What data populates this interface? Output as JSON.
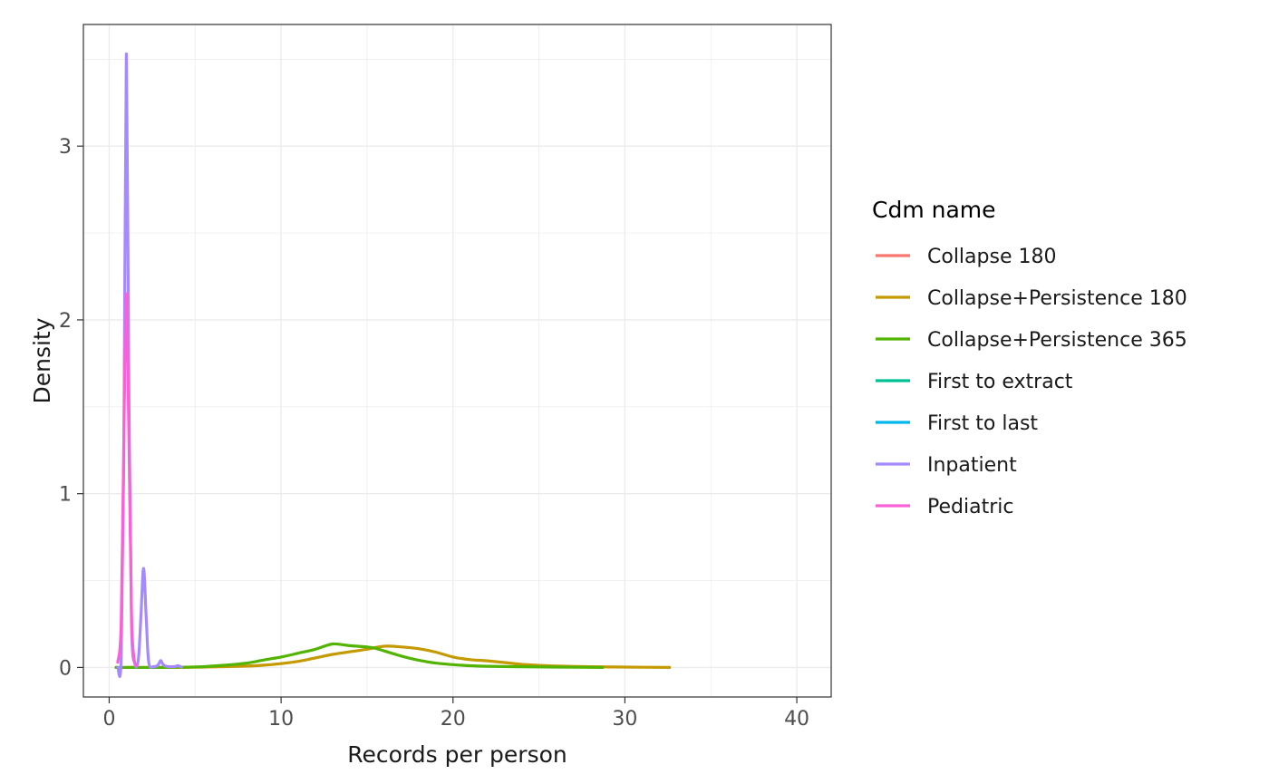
{
  "chart_data": {
    "type": "line",
    "title": "",
    "xlabel": "Records per person",
    "ylabel": "Density",
    "xlim": [
      -1.5,
      42
    ],
    "ylim": [
      -0.17,
      3.7
    ],
    "x_ticks": [
      0,
      10,
      20,
      30,
      40
    ],
    "y_ticks": [
      0,
      1,
      2,
      3
    ],
    "grid": true,
    "legend": {
      "title": "Cdm name",
      "position": "right"
    },
    "series": [
      {
        "name": "Collapse 180",
        "color": "#F8766D",
        "x": [],
        "y": []
      },
      {
        "name": "Collapse+Persistence 180",
        "color": "#C49A00",
        "x": [
          1,
          4,
          6,
          8,
          9,
          10,
          11,
          12,
          13,
          14,
          15,
          16,
          17,
          18,
          19,
          20,
          21,
          22,
          23,
          24,
          25,
          26,
          28,
          30,
          32.6
        ],
        "y": [
          0,
          0,
          0.003,
          0.008,
          0.013,
          0.022,
          0.035,
          0.055,
          0.075,
          0.09,
          0.105,
          0.122,
          0.118,
          0.108,
          0.088,
          0.06,
          0.045,
          0.038,
          0.028,
          0.018,
          0.012,
          0.008,
          0.004,
          0.002,
          0
        ]
      },
      {
        "name": "Collapse+Persistence 365",
        "color": "#53B400",
        "x": [
          0.4,
          3,
          5,
          6,
          7,
          8,
          9,
          10,
          11,
          12,
          13,
          14,
          15,
          15.5,
          16,
          17,
          18,
          19,
          20,
          21,
          22,
          24,
          26,
          28.7
        ],
        "y": [
          0,
          0,
          0.003,
          0.008,
          0.015,
          0.025,
          0.043,
          0.06,
          0.082,
          0.105,
          0.135,
          0.125,
          0.118,
          0.11,
          0.095,
          0.065,
          0.042,
          0.025,
          0.016,
          0.01,
          0.007,
          0.004,
          0.002,
          0
        ]
      },
      {
        "name": "First to extract",
        "color": "#00C094",
        "x": [],
        "y": []
      },
      {
        "name": "First to last",
        "color": "#00B6EB",
        "x": [],
        "y": []
      },
      {
        "name": "Inpatient",
        "color": "#A58AFF",
        "x": [
          0.5,
          0.7,
          0.85,
          1.0,
          1.15,
          1.3,
          1.5,
          1.7,
          1.85,
          2.0,
          2.15,
          2.3,
          2.6,
          2.85,
          3.0,
          3.15,
          3.4,
          3.8,
          4.0,
          4.2
        ],
        "y": [
          0.0,
          0.05,
          1.2,
          3.53,
          1.5,
          0.25,
          0.02,
          0.05,
          0.3,
          0.57,
          0.3,
          0.03,
          0.005,
          0.015,
          0.04,
          0.015,
          0.005,
          0.005,
          0.01,
          0.002
        ]
      },
      {
        "name": "Pediatric",
        "color": "#FB61D7",
        "x": [
          0.5,
          0.7,
          0.85,
          1.0,
          1.15,
          1.3,
          1.45,
          1.6
        ],
        "y": [
          0.03,
          0.25,
          1.3,
          2.15,
          1.3,
          0.3,
          0.05,
          0.01
        ]
      }
    ]
  }
}
